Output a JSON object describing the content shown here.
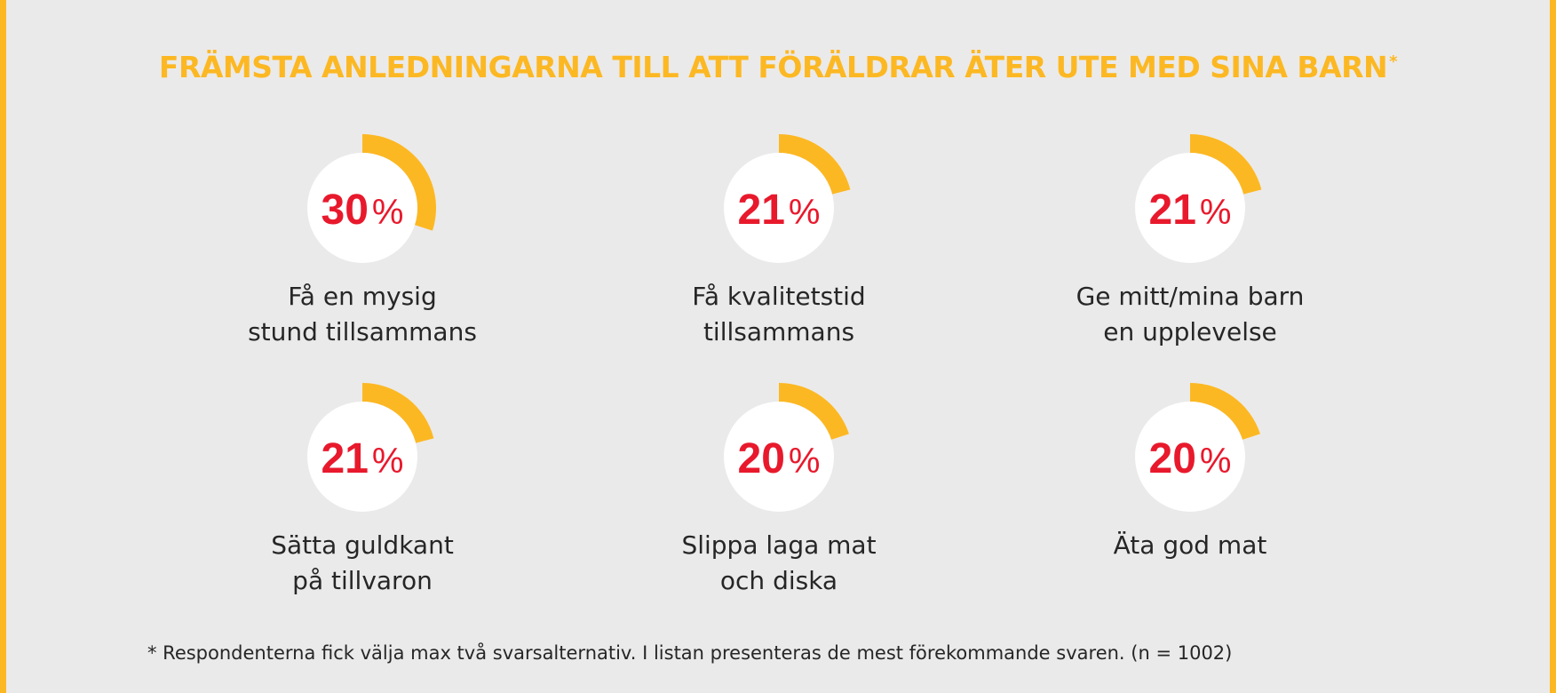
{
  "colors": {
    "accent": "#fcb823",
    "value": "#e8192c",
    "circle": "#ffffff",
    "edge": "#fcb823",
    "text": "#262626"
  },
  "title": "FRÄMSTA ANLEDNINGARNA TILL ATT FÖRÄLDRAR ÄTER UTE MED SINA BARN",
  "title_mark": "*",
  "chart_data": {
    "type": "pie",
    "unit": "%",
    "title": "FRÄMSTA ANLEDNINGARNA TILL ATT FÖRÄLDRAR ÄTER UTE MED SINA BARN",
    "categories": [
      [
        "Få en mysig",
        "stund tillsammans"
      ],
      [
        "Få kvalitetstid",
        "tillsammans"
      ],
      [
        "Ge mitt/mina barn",
        "en upplevelse"
      ],
      [
        "Sätta guldkant",
        "på tillvaron"
      ],
      [
        "Slippa laga mat",
        "och diska"
      ],
      [
        "Äta god mat"
      ]
    ],
    "values": [
      30,
      21,
      21,
      21,
      20,
      20
    ]
  },
  "footnote": "* Respondenterna fick välja max två svarsalternativ. I listan presenteras de mest förekommande svaren. (n = 1002)"
}
